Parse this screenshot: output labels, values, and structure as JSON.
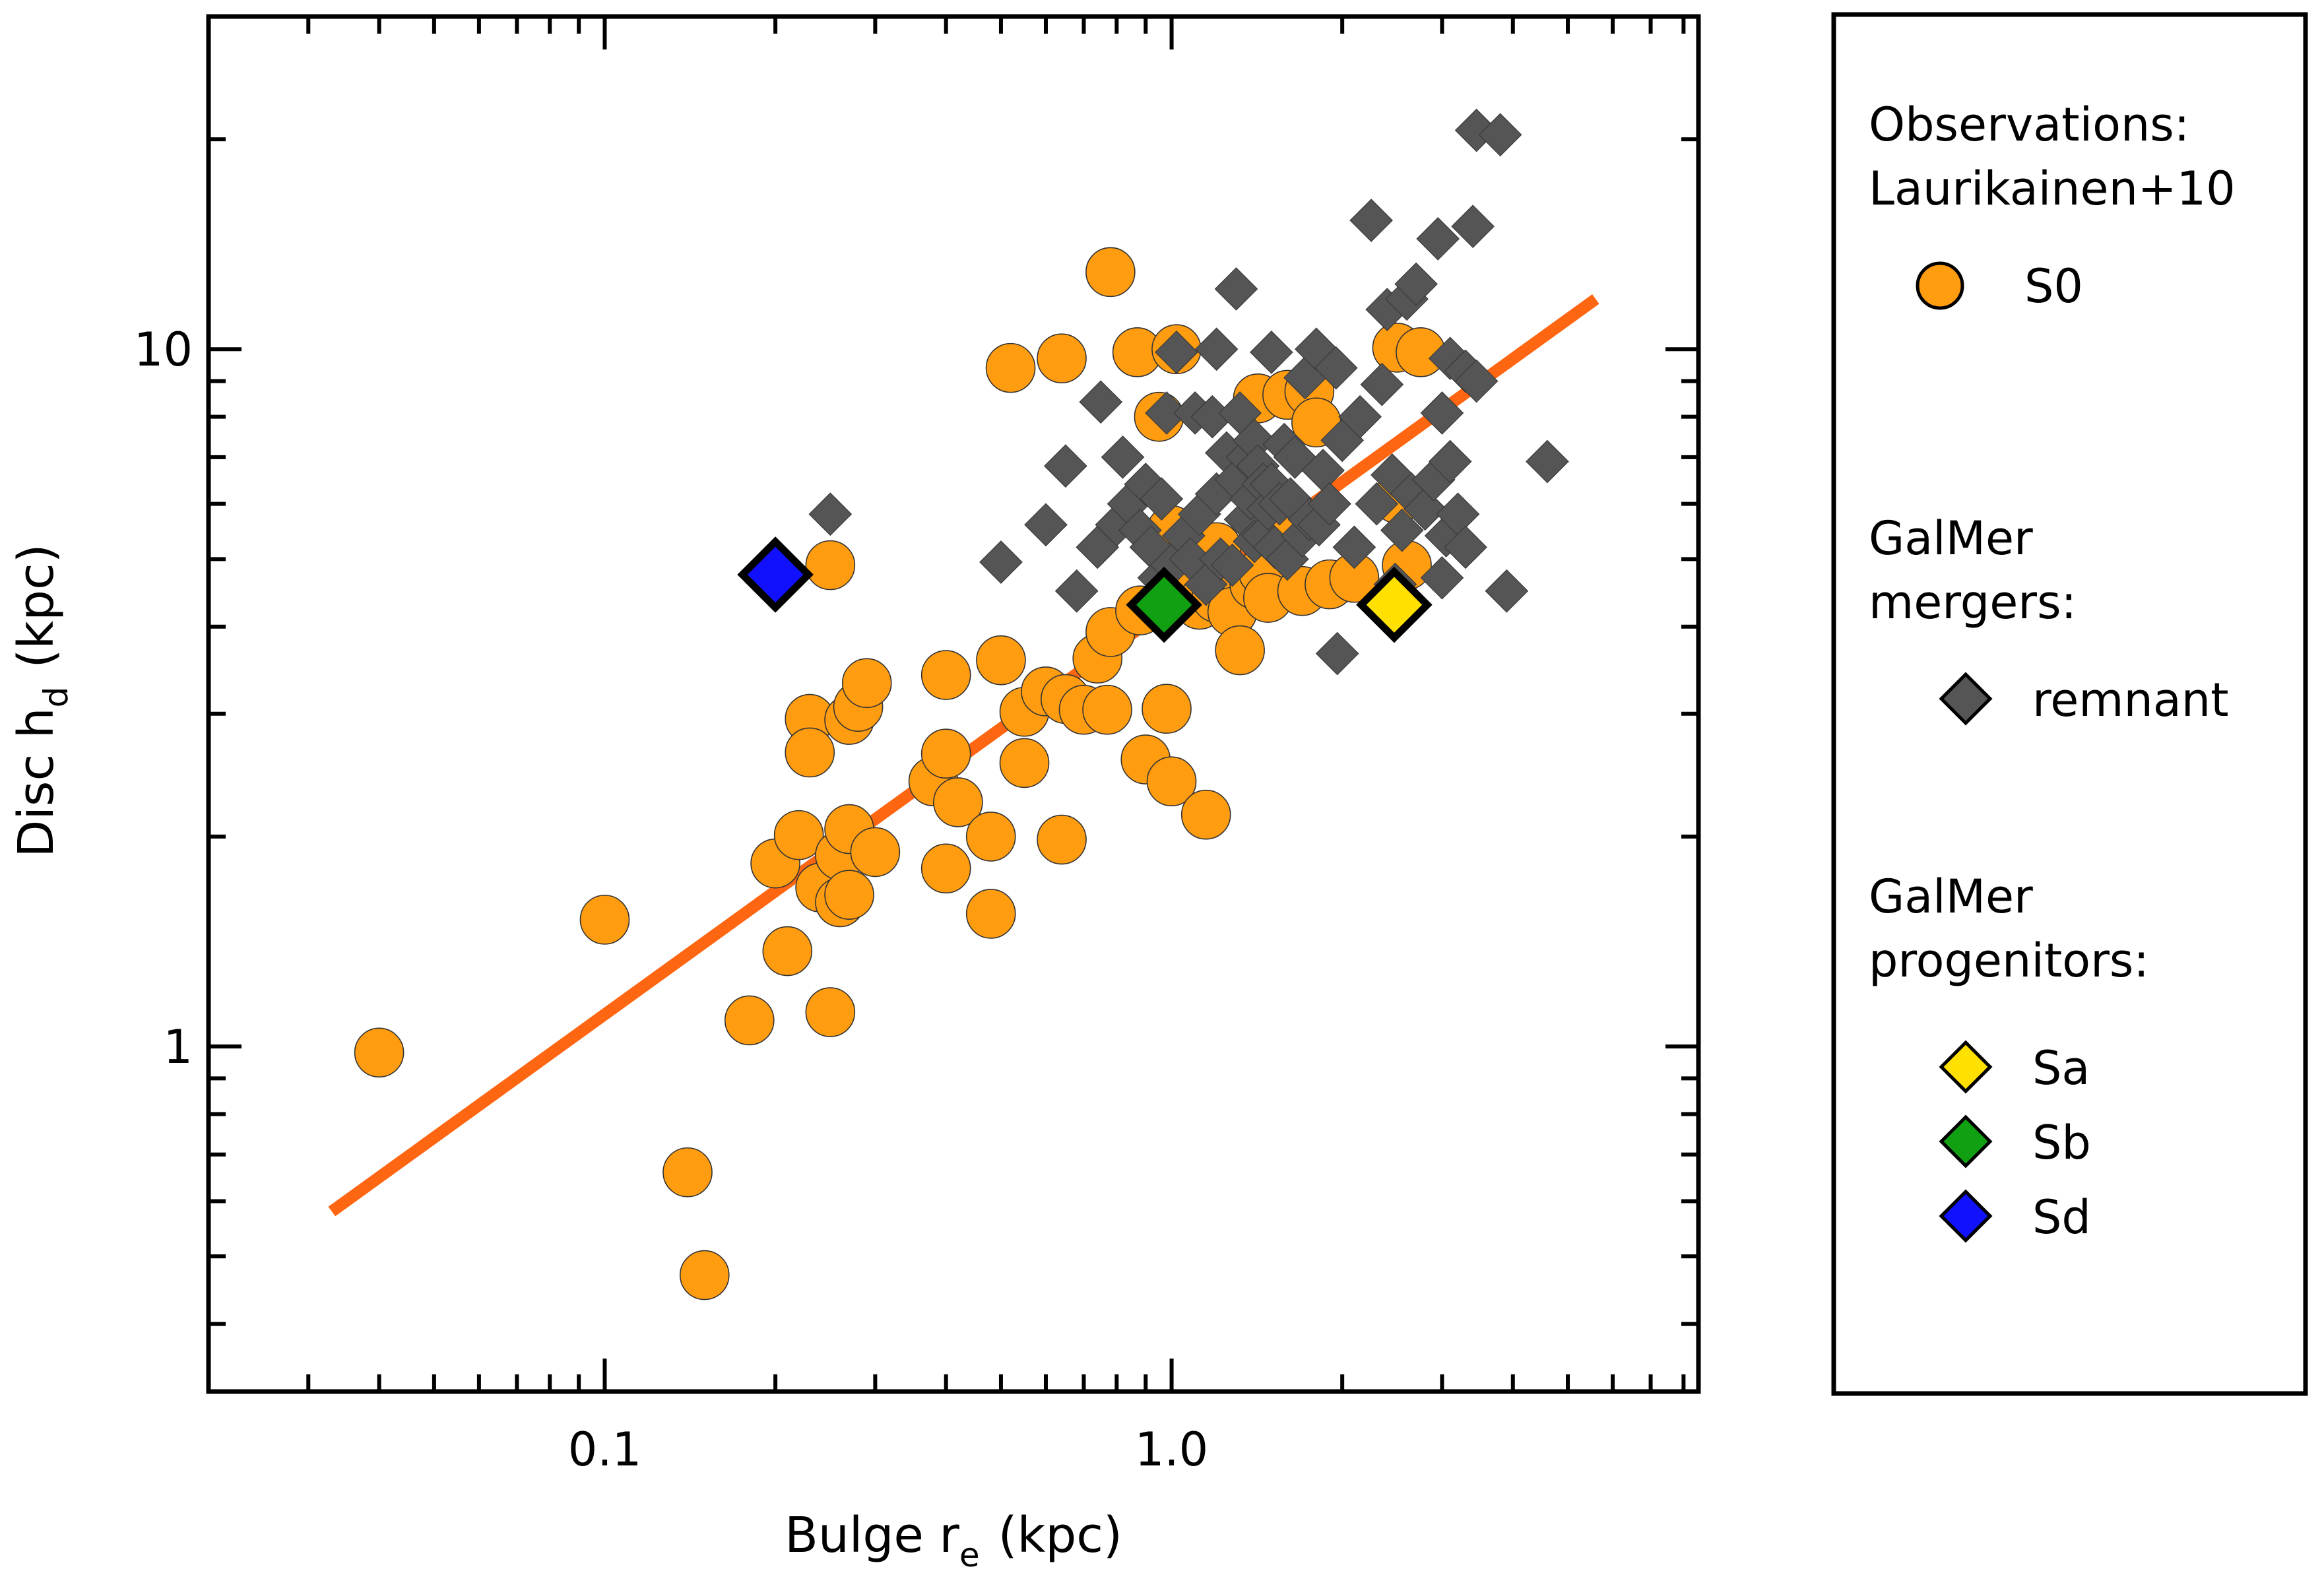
{
  "chart_data": {
    "type": "scatter",
    "xscale": "log",
    "yscale": "log",
    "xlim": [
      0.02,
      8.5
    ],
    "ylim": [
      0.32,
      30
    ],
    "xlabel": {
      "main": "Bulge r",
      "sub": "e",
      "unit": "(kpc)"
    },
    "ylabel": {
      "main": "Disc h",
      "sub": "d",
      "unit": "(kpc)"
    },
    "x_ticks": [
      {
        "value": 0.1,
        "label": "0.1"
      },
      {
        "value": 1.0,
        "label": "1.0"
      }
    ],
    "y_ticks": [
      {
        "value": 1,
        "label": "1"
      },
      {
        "value": 10,
        "label": "10"
      }
    ],
    "fit_line": {
      "color": "#ff6611",
      "x": [
        0.033,
        5.6
      ],
      "y": [
        0.58,
        11.8
      ]
    },
    "legend": {
      "groups": [
        {
          "heading": [
            "Observations:",
            "Laurikainen+10"
          ],
          "entries": [
            {
              "series": "s0",
              "label": "S0"
            }
          ]
        },
        {
          "heading": [
            "GalMer",
            "mergers:"
          ],
          "entries": [
            {
              "series": "remnant",
              "label": "remnant"
            }
          ]
        },
        {
          "heading": [
            "GalMer",
            "progenitors:"
          ],
          "entries": [
            {
              "series": "sa",
              "label": "Sa"
            },
            {
              "series": "sb",
              "label": "Sb"
            },
            {
              "series": "sd",
              "label": "Sd"
            }
          ]
        }
      ]
    },
    "series": [
      {
        "key": "s0",
        "name": "S0",
        "marker": "circle",
        "color": "#ff9c10",
        "points": [
          [
            0.04,
            0.98
          ],
          [
            0.1,
            1.52
          ],
          [
            0.14,
            0.66
          ],
          [
            0.15,
            0.47
          ],
          [
            0.18,
            1.09
          ],
          [
            0.2,
            1.83
          ],
          [
            0.21,
            1.37
          ],
          [
            0.22,
            2.01
          ],
          [
            0.23,
            2.95
          ],
          [
            0.23,
            2.64
          ],
          [
            0.24,
            1.69
          ],
          [
            0.25,
            1.12
          ],
          [
            0.25,
            4.9
          ],
          [
            0.26,
            1.61
          ],
          [
            0.26,
            1.88
          ],
          [
            0.27,
            1.65
          ],
          [
            0.27,
            2.05
          ],
          [
            0.27,
            2.94
          ],
          [
            0.28,
            3.07
          ],
          [
            0.29,
            3.32
          ],
          [
            0.3,
            1.9
          ],
          [
            0.38,
            2.4
          ],
          [
            0.4,
            3.41
          ],
          [
            0.4,
            2.63
          ],
          [
            0.4,
            1.8
          ],
          [
            0.42,
            2.24
          ],
          [
            0.48,
            2.0
          ],
          [
            0.48,
            1.55
          ],
          [
            0.5,
            3.58
          ],
          [
            0.52,
            9.4
          ],
          [
            0.55,
            3.02
          ],
          [
            0.55,
            2.55
          ],
          [
            0.6,
            3.23
          ],
          [
            0.64,
            1.98
          ],
          [
            0.64,
            9.7
          ],
          [
            0.65,
            3.15
          ],
          [
            0.7,
            3.04
          ],
          [
            0.74,
            3.6
          ],
          [
            0.77,
            3.04
          ],
          [
            0.78,
            3.93
          ],
          [
            0.78,
            12.9
          ],
          [
            0.87,
            9.9
          ],
          [
            0.88,
            4.22
          ],
          [
            0.9,
            2.58
          ],
          [
            0.95,
            8.0
          ],
          [
            0.98,
            3.05
          ],
          [
            1.0,
            5.5
          ],
          [
            1.0,
            2.4
          ],
          [
            1.02,
            10.0
          ],
          [
            1.04,
            4.91
          ],
          [
            1.12,
            4.3
          ],
          [
            1.15,
            2.15
          ],
          [
            1.2,
            5.2
          ],
          [
            1.2,
            4.4
          ],
          [
            1.28,
            4.2
          ],
          [
            1.32,
            3.7
          ],
          [
            1.4,
            4.6
          ],
          [
            1.42,
            8.5
          ],
          [
            1.45,
            4.8
          ],
          [
            1.48,
            4.4
          ],
          [
            1.55,
            5.5
          ],
          [
            1.6,
            8.6
          ],
          [
            1.7,
            4.5
          ],
          [
            1.75,
            8.7
          ],
          [
            1.8,
            7.85
          ],
          [
            1.9,
            4.6
          ],
          [
            2.1,
            4.7
          ],
          [
            2.5,
            10.05
          ],
          [
            2.5,
            6.1
          ],
          [
            2.6,
            4.9
          ],
          [
            2.75,
            9.9
          ]
        ]
      },
      {
        "key": "remnant",
        "name": "remnant",
        "marker": "diamond",
        "color": "#555555",
        "points": [
          [
            0.25,
            5.8
          ],
          [
            0.5,
            4.95
          ],
          [
            0.6,
            5.6
          ],
          [
            0.65,
            6.8
          ],
          [
            0.68,
            4.5
          ],
          [
            0.74,
            5.2
          ],
          [
            0.75,
            8.4
          ],
          [
            0.8,
            5.6
          ],
          [
            0.82,
            7.0
          ],
          [
            0.84,
            6.0
          ],
          [
            0.88,
            5.5
          ],
          [
            0.9,
            6.4
          ],
          [
            0.92,
            5.2
          ],
          [
            0.95,
            4.7
          ],
          [
            0.96,
            6.1
          ],
          [
            0.98,
            8.1
          ],
          [
            1.0,
            4.9
          ],
          [
            1.02,
            9.9
          ],
          [
            1.05,
            5.4
          ],
          [
            1.08,
            5.0
          ],
          [
            1.1,
            8.1
          ],
          [
            1.12,
            5.8
          ],
          [
            1.15,
            4.6
          ],
          [
            1.18,
            8.0
          ],
          [
            1.2,
            6.2
          ],
          [
            1.2,
            10.0
          ],
          [
            1.22,
            5.0
          ],
          [
            1.25,
            7.1
          ],
          [
            1.28,
            4.9
          ],
          [
            1.3,
            6.5
          ],
          [
            1.3,
            12.2
          ],
          [
            1.32,
            8.1
          ],
          [
            1.35,
            5.7
          ],
          [
            1.36,
            7.0
          ],
          [
            1.38,
            6.1
          ],
          [
            1.4,
            5.3
          ],
          [
            1.4,
            7.4
          ],
          [
            1.42,
            6.8
          ],
          [
            1.45,
            5.4
          ],
          [
            1.45,
            6.4
          ],
          [
            1.48,
            5.9
          ],
          [
            1.5,
            9.9
          ],
          [
            1.5,
            6.4
          ],
          [
            1.52,
            5.2
          ],
          [
            1.55,
            6.0
          ],
          [
            1.58,
            7.3
          ],
          [
            1.6,
            5.0
          ],
          [
            1.62,
            6.1
          ],
          [
            1.65,
            7.0
          ],
          [
            1.7,
            5.4
          ],
          [
            1.72,
            9.1
          ],
          [
            1.75,
            5.7
          ],
          [
            1.8,
            10.0
          ],
          [
            1.82,
            5.6
          ],
          [
            1.85,
            6.7
          ],
          [
            1.9,
            6.0
          ],
          [
            1.95,
            9.4
          ],
          [
            1.96,
            3.66
          ],
          [
            2.0,
            7.4
          ],
          [
            2.1,
            5.2
          ],
          [
            2.15,
            8.0
          ],
          [
            2.25,
            15.3
          ],
          [
            2.3,
            6.0
          ],
          [
            2.35,
            8.9
          ],
          [
            2.4,
            11.4
          ],
          [
            2.45,
            6.6
          ],
          [
            2.48,
            4.6
          ],
          [
            2.55,
            5.5
          ],
          [
            2.6,
            11.8
          ],
          [
            2.65,
            6.2
          ],
          [
            2.7,
            12.4
          ],
          [
            2.8,
            5.9
          ],
          [
            2.9,
            6.5
          ],
          [
            2.95,
            14.4
          ],
          [
            3.0,
            8.1
          ],
          [
            3.0,
            4.7
          ],
          [
            3.05,
            5.4
          ],
          [
            3.1,
            9.7
          ],
          [
            3.1,
            6.9
          ],
          [
            3.2,
            5.8
          ],
          [
            3.3,
            5.2
          ],
          [
            3.3,
            9.3
          ],
          [
            3.4,
            15.0
          ],
          [
            3.45,
            9.0
          ],
          [
            3.45,
            20.6
          ],
          [
            3.8,
            20.3
          ],
          [
            3.9,
            4.5
          ],
          [
            4.6,
            6.9
          ]
        ]
      },
      {
        "key": "sa",
        "name": "Sa",
        "marker": "diamond",
        "color": "#ffe000",
        "outlined": true,
        "points": [
          [
            2.47,
            4.3
          ]
        ]
      },
      {
        "key": "sb",
        "name": "Sb",
        "marker": "diamond",
        "color": "#11a011",
        "outlined": true,
        "points": [
          [
            0.97,
            4.3
          ]
        ]
      },
      {
        "key": "sd",
        "name": "Sd",
        "marker": "diamond",
        "color": "#1111ff",
        "outlined": true,
        "points": [
          [
            0.2,
            4.75
          ]
        ]
      }
    ]
  }
}
